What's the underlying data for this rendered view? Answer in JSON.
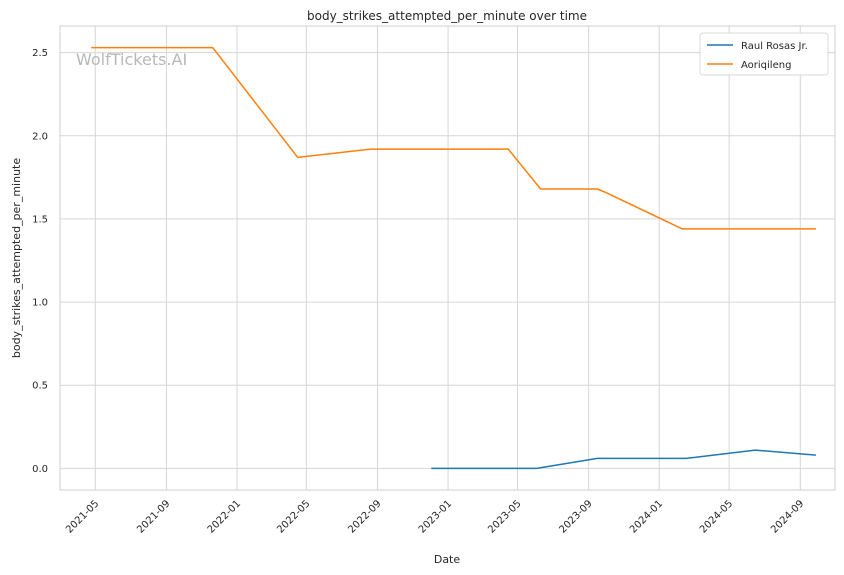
{
  "watermark": "WolfTickets.AI",
  "chart_data": {
    "type": "line",
    "title": "body_strikes_attempted_per_minute over time",
    "xlabel": "Date",
    "ylabel": "body_strikes_attempted_per_minute",
    "x_ticks": [
      "2021-05",
      "2021-09",
      "2022-01",
      "2022-05",
      "2022-09",
      "2023-01",
      "2023-05",
      "2023-09",
      "2024-01",
      "2024-05",
      "2024-09"
    ],
    "y_ticks": [
      "0.0",
      "0.5",
      "1.0",
      "1.5",
      "2.0",
      "2.5"
    ],
    "xlim": [
      "2021-03-01",
      "2024-10-31"
    ],
    "ylim": [
      -0.13,
      2.66
    ],
    "grid": true,
    "legend_position": "top-right",
    "series": [
      {
        "name": "Raul Rosas Jr.",
        "color": "#1f77b4",
        "points": [
          {
            "x": "2022-12-03",
            "y": 0.0
          },
          {
            "x": "2023-06-03",
            "y": 0.0
          },
          {
            "x": "2023-09-16",
            "y": 0.06
          },
          {
            "x": "2024-02-17",
            "y": 0.06
          },
          {
            "x": "2024-06-15",
            "y": 0.11
          },
          {
            "x": "2024-09-28",
            "y": 0.08
          }
        ]
      },
      {
        "name": "Aoriqileng",
        "color": "#ff7f0e",
        "points": [
          {
            "x": "2021-04-24",
            "y": 2.53
          },
          {
            "x": "2021-11-20",
            "y": 2.53
          },
          {
            "x": "2022-04-16",
            "y": 1.87
          },
          {
            "x": "2022-08-20",
            "y": 1.92
          },
          {
            "x": "2023-04-15",
            "y": 1.92
          },
          {
            "x": "2023-06-10",
            "y": 1.68
          },
          {
            "x": "2023-09-16",
            "y": 1.68
          },
          {
            "x": "2023-09-30",
            "y": 1.66
          },
          {
            "x": "2024-02-10",
            "y": 1.44
          },
          {
            "x": "2024-09-28",
            "y": 1.44
          }
        ]
      }
    ]
  }
}
